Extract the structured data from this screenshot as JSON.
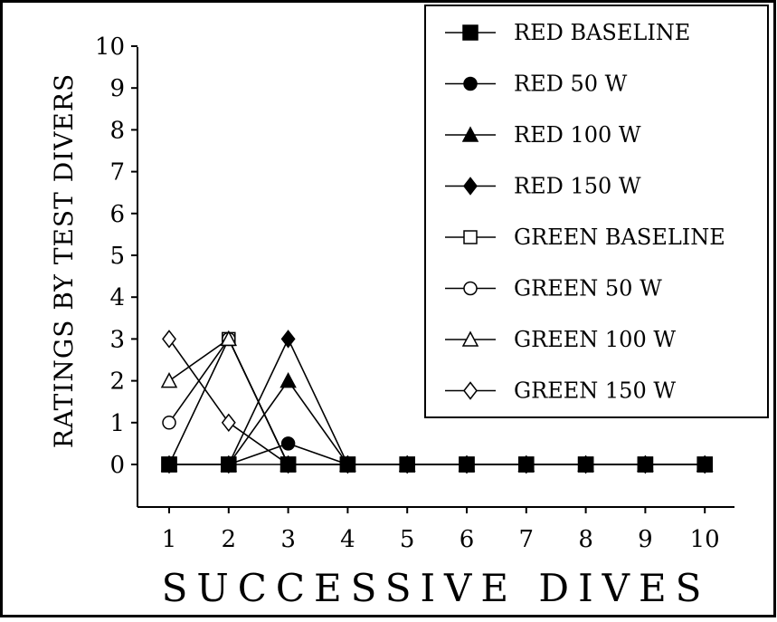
{
  "chart_data": {
    "type": "line",
    "xlabel": "SUCCESSIVE DIVES",
    "ylabel": "RATINGS BY TEST DIVERS",
    "xlim": [
      1,
      10
    ],
    "ylim": [
      0,
      10
    ],
    "x_ticks": [
      "1",
      "2",
      "3",
      "4",
      "5",
      "6",
      "7",
      "8",
      "9",
      "10"
    ],
    "y_ticks": [
      "0",
      "1",
      "2",
      "3",
      "4",
      "5",
      "6",
      "7",
      "8",
      "9",
      "10"
    ],
    "grid": false,
    "legend_position": "top-right",
    "x": [
      1,
      2,
      3,
      4,
      5,
      6,
      7,
      8,
      9,
      10
    ],
    "series": [
      {
        "name": "RED BASELINE",
        "marker": "square-filled",
        "values": [
          0,
          0,
          0,
          0,
          0,
          0,
          0,
          0,
          0,
          0
        ]
      },
      {
        "name": "RED 50 W",
        "marker": "circle-filled",
        "values": [
          0,
          0,
          0.5,
          0,
          0,
          0,
          0,
          0,
          0,
          0
        ]
      },
      {
        "name": "RED 100 W",
        "marker": "triangle-filled",
        "values": [
          0,
          0,
          2,
          0,
          0,
          0,
          0,
          0,
          0,
          0
        ]
      },
      {
        "name": "RED 150 W",
        "marker": "diamond-filled",
        "values": [
          0,
          0,
          3,
          0,
          0,
          0,
          0,
          0,
          0,
          0
        ]
      },
      {
        "name": "GREEN BASELINE",
        "marker": "square-open",
        "values": [
          0,
          3,
          0,
          0,
          0,
          0,
          0,
          0,
          0,
          0
        ]
      },
      {
        "name": "GREEN 50 W",
        "marker": "circle-open",
        "values": [
          1,
          3,
          0,
          0,
          0,
          0,
          0,
          0,
          0,
          0
        ]
      },
      {
        "name": "GREEN 100 W",
        "marker": "triangle-open",
        "values": [
          2,
          3,
          0,
          0,
          0,
          0,
          0,
          0,
          0,
          0
        ]
      },
      {
        "name": "GREEN 150 W",
        "marker": "diamond-open",
        "values": [
          3,
          1,
          0,
          0,
          0,
          0,
          0,
          0,
          0,
          0
        ]
      }
    ]
  }
}
